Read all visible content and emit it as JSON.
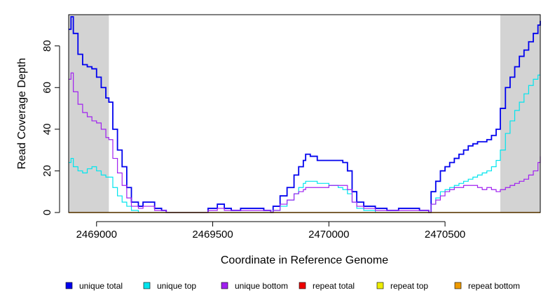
{
  "chart_data": {
    "type": "line",
    "title": "",
    "xlabel": "Coordinate in Reference Genome",
    "ylabel": "Read Coverage Depth",
    "xlim": [
      2468880,
      2470910
    ],
    "ylim": [
      0,
      95
    ],
    "x_ticks": [
      2469000,
      2469500,
      2470000,
      2470500
    ],
    "x_tick_labels": [
      "2469000",
      "2469500",
      "2470000",
      "2470500"
    ],
    "y_ticks": [
      0,
      20,
      40,
      60,
      80
    ],
    "y_tick_labels": [
      "0",
      "20",
      "40",
      "60",
      "80"
    ],
    "shaded_regions": [
      {
        "from": 2468880,
        "to": 2469053,
        "color": "#d3d3d3"
      },
      {
        "from": 2470738,
        "to": 2470910,
        "color": "#d3d3d3"
      }
    ],
    "series": [
      {
        "name": "unique total",
        "color": "#0000ee",
        "x": [
          2468880,
          2468890,
          2468900,
          2468920,
          2468940,
          2468960,
          2468980,
          2469000,
          2469020,
          2469040,
          2469053,
          2469070,
          2469090,
          2469110,
          2469130,
          2469150,
          2469180,
          2469200,
          2469220,
          2469250,
          2469280,
          2469300,
          2469450,
          2469480,
          2469520,
          2469550,
          2469580,
          2469620,
          2469680,
          2469720,
          2469750,
          2469760,
          2469790,
          2469820,
          2469850,
          2469870,
          2469890,
          2469900,
          2469920,
          2469950,
          2470000,
          2470040,
          2470060,
          2470080,
          2470100,
          2470120,
          2470150,
          2470200,
          2470250,
          2470300,
          2470350,
          2470390,
          2470430,
          2470440,
          2470460,
          2470480,
          2470500,
          2470520,
          2470540,
          2470560,
          2470580,
          2470600,
          2470620,
          2470640,
          2470660,
          2470680,
          2470700,
          2470720,
          2470738,
          2470760,
          2470780,
          2470800,
          2470820,
          2470840,
          2470860,
          2470880,
          2470900,
          2470910
        ],
        "values": [
          88,
          94,
          86,
          76,
          71,
          70,
          69,
          65,
          60,
          55,
          53,
          40,
          30,
          22,
          12,
          5,
          3,
          5,
          5,
          2,
          1,
          0,
          0,
          2,
          4,
          2,
          1,
          2,
          2,
          1,
          0,
          3,
          8,
          12,
          18,
          22,
          25,
          28,
          27,
          25,
          25,
          25,
          24,
          20,
          10,
          5,
          3,
          2,
          1,
          2,
          2,
          1,
          0,
          10,
          15,
          20,
          22,
          24,
          26,
          28,
          30,
          32,
          33,
          34,
          34,
          35,
          37,
          40,
          50,
          60,
          65,
          70,
          75,
          78,
          82,
          86,
          90,
          92
        ]
      },
      {
        "name": "unique top",
        "color": "#00e5ee",
        "x": [
          2468880,
          2468890,
          2468900,
          2468920,
          2468940,
          2468960,
          2468980,
          2469000,
          2469020,
          2469040,
          2469053,
          2469070,
          2469090,
          2469110,
          2469130,
          2469150,
          2469180,
          2469200,
          2469220,
          2469250,
          2469280,
          2469300,
          2469450,
          2469480,
          2469520,
          2469550,
          2469580,
          2469620,
          2469680,
          2469720,
          2469750,
          2469760,
          2469790,
          2469820,
          2469850,
          2469870,
          2469890,
          2469900,
          2469920,
          2469950,
          2470000,
          2470040,
          2470060,
          2470080,
          2470100,
          2470120,
          2470150,
          2470200,
          2470250,
          2470300,
          2470350,
          2470390,
          2470430,
          2470440,
          2470460,
          2470480,
          2470500,
          2470520,
          2470540,
          2470560,
          2470580,
          2470600,
          2470620,
          2470640,
          2470660,
          2470680,
          2470700,
          2470720,
          2470738,
          2470760,
          2470780,
          2470800,
          2470820,
          2470840,
          2470860,
          2470880,
          2470900,
          2470910
        ],
        "values": [
          24,
          26,
          22,
          20,
          19,
          21,
          22,
          20,
          18,
          17,
          17,
          12,
          8,
          5,
          3,
          1,
          0,
          0,
          0,
          0,
          0,
          0,
          0,
          0,
          0,
          0,
          0,
          0,
          0,
          0,
          0,
          1,
          3,
          6,
          9,
          12,
          14,
          15,
          15,
          14,
          13,
          12,
          11,
          9,
          5,
          2,
          1,
          0,
          0,
          0,
          0,
          0,
          0,
          4,
          7,
          10,
          11,
          12,
          13,
          14,
          15,
          16,
          17,
          18,
          19,
          20,
          22,
          25,
          30,
          38,
          44,
          49,
          53,
          57,
          61,
          64,
          66,
          66
        ]
      },
      {
        "name": "unique bottom",
        "color": "#a020f0",
        "x": [
          2468880,
          2468890,
          2468900,
          2468920,
          2468940,
          2468960,
          2468980,
          2469000,
          2469020,
          2469040,
          2469053,
          2469070,
          2469090,
          2469110,
          2469130,
          2469150,
          2469180,
          2469200,
          2469220,
          2469250,
          2469280,
          2469300,
          2469450,
          2469480,
          2469520,
          2469550,
          2469580,
          2469620,
          2469680,
          2469720,
          2469750,
          2469760,
          2469790,
          2469820,
          2469850,
          2469870,
          2469890,
          2469900,
          2469920,
          2469950,
          2470000,
          2470040,
          2470060,
          2470080,
          2470100,
          2470120,
          2470150,
          2470200,
          2470250,
          2470300,
          2470350,
          2470390,
          2470430,
          2470440,
          2470460,
          2470480,
          2470500,
          2470520,
          2470540,
          2470560,
          2470580,
          2470600,
          2470620,
          2470640,
          2470660,
          2470680,
          2470700,
          2470720,
          2470738,
          2470760,
          2470780,
          2470800,
          2470820,
          2470840,
          2470860,
          2470880,
          2470900,
          2470910
        ],
        "values": [
          64,
          67,
          58,
          52,
          48,
          46,
          44,
          43,
          40,
          36,
          35,
          26,
          19,
          13,
          7,
          3,
          2,
          3,
          3,
          1,
          1,
          0,
          0,
          1,
          2,
          1,
          1,
          1,
          1,
          1,
          0,
          1,
          4,
          6,
          9,
          10,
          11,
          12,
          12,
          12,
          13,
          13,
          13,
          11,
          5,
          3,
          2,
          1,
          1,
          1,
          1,
          1,
          0,
          4,
          6,
          8,
          10,
          11,
          12,
          12,
          13,
          13,
          13,
          12,
          11,
          12,
          11,
          10,
          11,
          12,
          13,
          14,
          15,
          16,
          18,
          20,
          24,
          27
        ]
      },
      {
        "name": "repeat total",
        "color": "#ee0000",
        "x": [
          2468880,
          2470910
        ],
        "values": [
          0,
          0
        ]
      },
      {
        "name": "repeat top",
        "color": "#eeee00",
        "x": [
          2468880,
          2470910
        ],
        "values": [
          0,
          0
        ]
      },
      {
        "name": "repeat bottom",
        "color": "#ee9a00",
        "x": [
          2468880,
          2470910
        ],
        "values": [
          0,
          0
        ]
      }
    ],
    "legend": [
      "unique total",
      "unique top",
      "unique bottom",
      "repeat total",
      "repeat top",
      "repeat bottom"
    ],
    "legend_position": "bottom"
  }
}
